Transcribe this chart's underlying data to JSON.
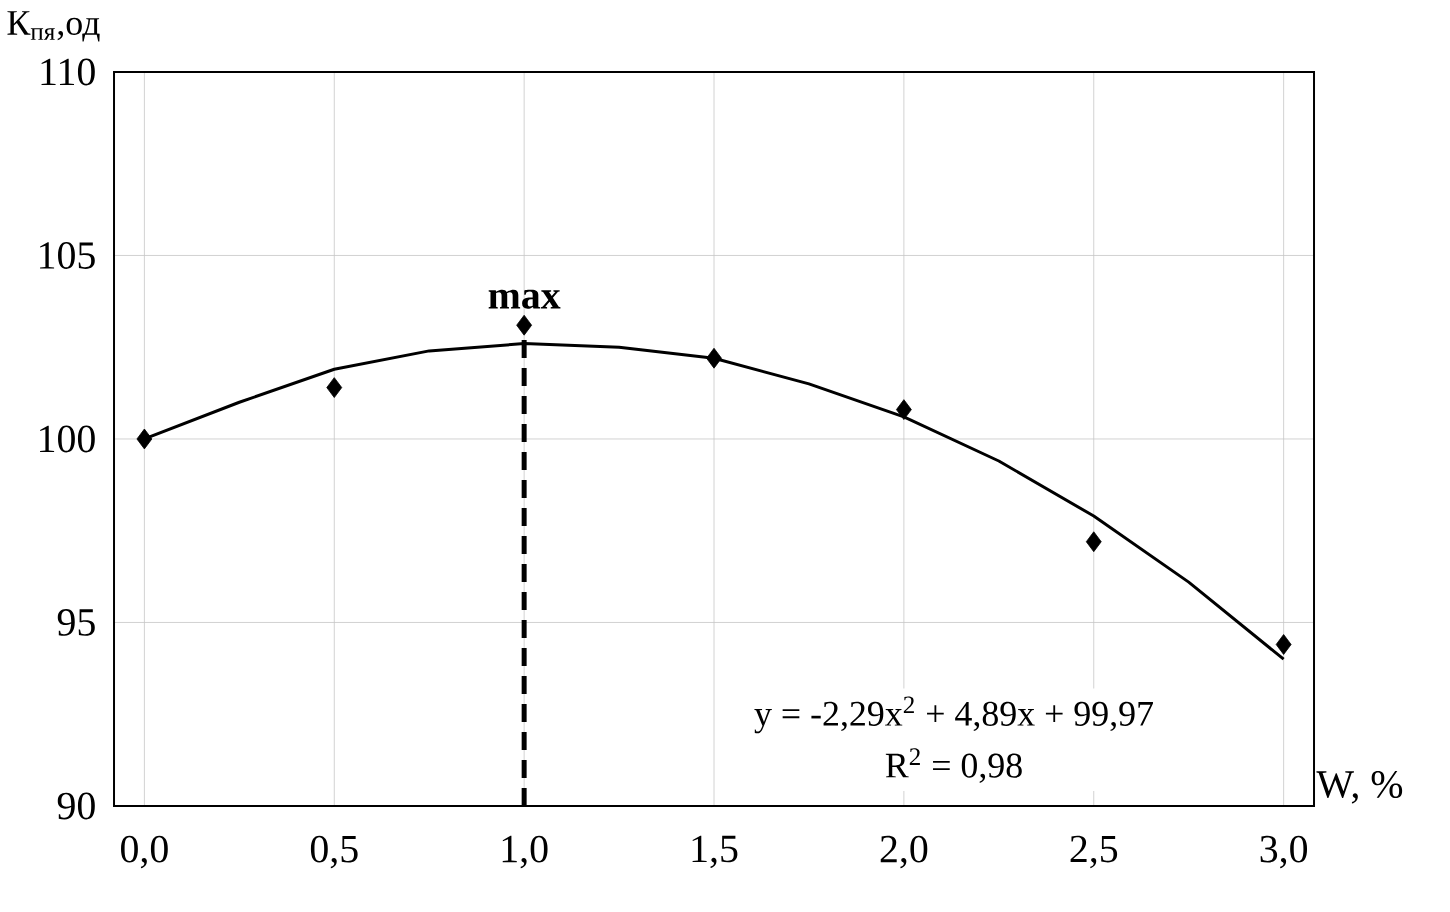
{
  "chart_data": {
    "type": "scatter",
    "xlabel": "W, %",
    "ylabel": "К$_{пя}$,од",
    "x": [
      0.0,
      0.5,
      1.0,
      1.5,
      2.0,
      2.5,
      3.0
    ],
    "series": [
      {
        "color": "#000000",
        "marker": "diamond",
        "values": [
          100.0,
          101.4,
          103.1,
          102.2,
          100.8,
          97.2,
          94.4
        ]
      },
      {
        "type": "line",
        "color": "#000000",
        "marker": "none",
        "line_style": "solid",
        "x": [
          0,
          0.25,
          0.5,
          0.75,
          1.0,
          1.25,
          1.5,
          1.75,
          2.0,
          2.25,
          2.5,
          2.75,
          3.0
        ],
        "values": [
          100.0,
          101.0,
          101.9,
          102.4,
          102.6,
          102.5,
          102.2,
          101.5,
          100.6,
          99.4,
          97.9,
          96.1,
          94.0
        ]
      }
    ],
    "ref_lines": [
      {
        "axis": "x",
        "value": 1.0,
        "label": "**max**",
        "color": "#000000",
        "line_style": "dashed"
      }
    ],
    "annotations": [
      "y = -2,29x$^{2}$ + 4,89x + 99,97",
      "R$^{2}$ = 0,98"
    ],
    "xlim": [
      -0.08,
      3.08
    ],
    "ylim": [
      90,
      110
    ],
    "xticks": [
      {
        "value": 0,
        "label": "0,0"
      },
      {
        "value": 0.5,
        "label": "0,5"
      },
      {
        "value": 1.0,
        "label": "1,0"
      },
      {
        "value": 1.5,
        "label": "1,5"
      },
      {
        "value": 2.0,
        "label": "2,0"
      },
      {
        "value": 2.5,
        "label": "2,5"
      },
      {
        "value": 3.0,
        "label": "3,0"
      }
    ],
    "yticks": [
      90,
      95,
      100,
      105,
      110
    ],
    "grid": true
  }
}
